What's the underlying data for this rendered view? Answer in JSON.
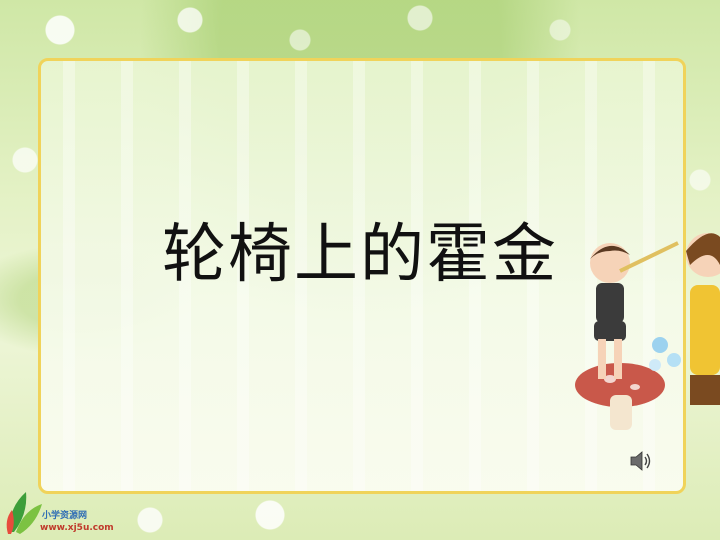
{
  "slide": {
    "title": "轮椅上的霍金"
  },
  "watermark": {
    "line1": "小学资源网",
    "line2": "www.xj5u.com"
  },
  "icons": {
    "speaker": "speaker-icon",
    "logo": "leaf-logo-icon"
  },
  "colors": {
    "panel_border": "#f0d35a",
    "title_text": "#111111"
  }
}
